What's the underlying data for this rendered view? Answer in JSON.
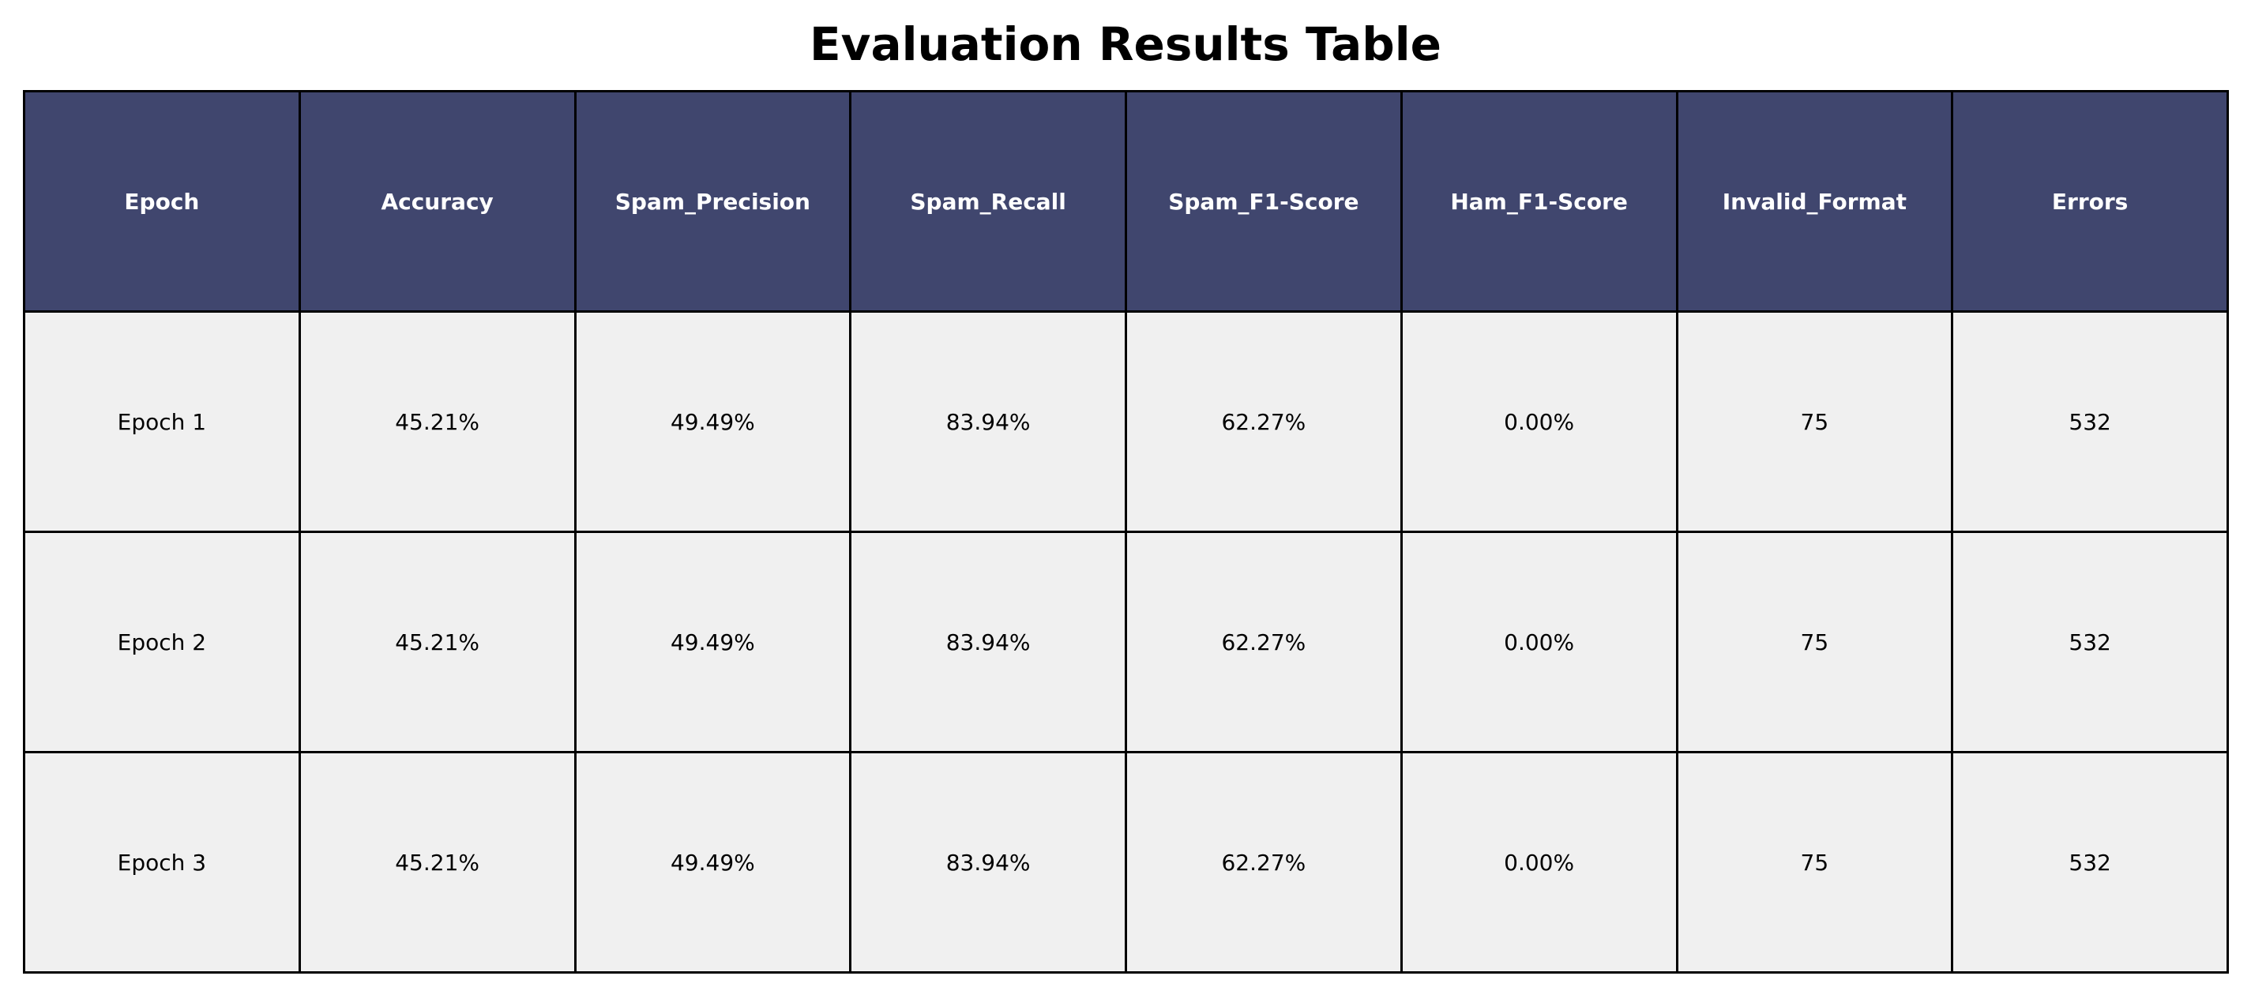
{
  "chart_data": {
    "type": "table",
    "title": "Evaluation Results Table",
    "header_bg_color": "#40466e",
    "header_text_color": "#ffffff",
    "cell_bg_color": "#f0f0f0",
    "columns": [
      "Epoch",
      "Accuracy",
      "Spam_Precision",
      "Spam_Recall",
      "Spam_F1-Score",
      "Ham_F1-Score",
      "Invalid_Format",
      "Errors"
    ],
    "rows": [
      [
        "Epoch 1",
        "45.21%",
        "49.49%",
        "83.94%",
        "62.27%",
        "0.00%",
        "75",
        "532"
      ],
      [
        "Epoch 2",
        "45.21%",
        "49.49%",
        "83.94%",
        "62.27%",
        "0.00%",
        "75",
        "532"
      ],
      [
        "Epoch 3",
        "45.21%",
        "49.49%",
        "83.94%",
        "62.27%",
        "0.00%",
        "75",
        "532"
      ]
    ]
  }
}
